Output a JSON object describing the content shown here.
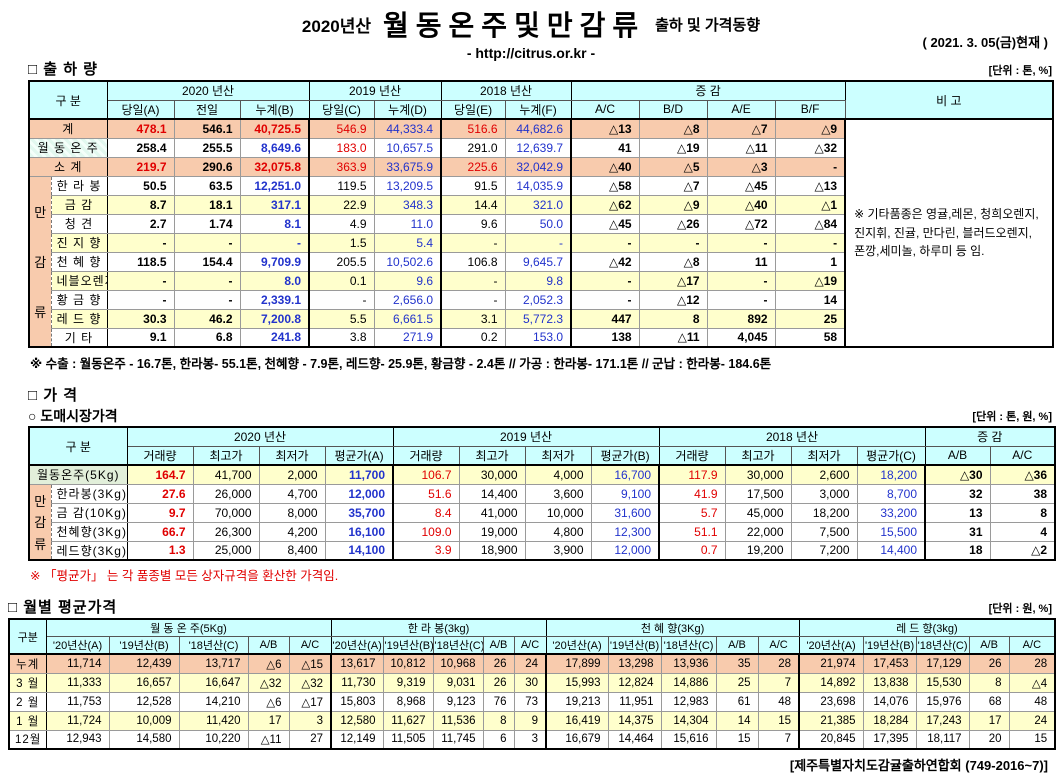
{
  "header": {
    "season": "2020년산",
    "title": "월동온주및만감류",
    "subtitle": "출하 및 가격동향",
    "url": "- http://citrus.or.kr -",
    "as_of": "( 2021. 3. 05(금)현재 )"
  },
  "colors": {
    "red": "#e00000",
    "blue": "#2233cc",
    "header_bg": "#ccffff",
    "orange_row": "#f8cbad",
    "yellow_row": "#ffffcc",
    "green_label": "#e2efda"
  },
  "shipment": {
    "section_title": "□ 출 하 량",
    "unit": "[단위 : 톤, %]",
    "header": {
      "gubun": "구      분",
      "y2020": "2020 년산",
      "y2019": "2019 년산",
      "y2018": "2018 년산",
      "diff": "증      감",
      "bigo": "비 고",
      "cols": [
        "당일(A)",
        "전일",
        "누계(B)",
        "당일(C)",
        "누계(D)",
        "당일(E)",
        "누계(F)",
        "A/C",
        "B/D",
        "A/E",
        "B/F"
      ]
    },
    "group_label": "만감류",
    "remark": "※ 기타품종은 영귤,레몬, 청희오렌지, 진지휘, 진귤, 만다린, 블러드오렌지, 폰깡,세미놀, 하루미 등 임.",
    "rows": [
      {
        "label": "계",
        "in_group": false,
        "bg": "orange",
        "values": [
          "478.1",
          "546.1",
          "40,725.5",
          "546.9",
          "44,333.4",
          "516.6",
          "44,682.6",
          "△13",
          "△8",
          "△7",
          "△9"
        ],
        "styles": [
          "rB",
          "kB",
          "rB",
          "r",
          "b",
          "r",
          "b",
          "kB",
          "kB",
          "kB",
          "kB"
        ]
      },
      {
        "label": "월 동 온 주",
        "in_group": false,
        "bg": "white",
        "label_style": "stripe",
        "values": [
          "258.4",
          "255.5",
          "8,649.6",
          "183.0",
          "10,657.5",
          "291.0",
          "12,639.7",
          "41",
          "△19",
          "△11",
          "△32"
        ],
        "styles": [
          "kB",
          "kB",
          "bB",
          "r",
          "b",
          "k",
          "b",
          "kB",
          "kB",
          "kB",
          "kB"
        ]
      },
      {
        "label": "소      계",
        "in_group": false,
        "bg": "orange",
        "values": [
          "219.7",
          "290.6",
          "32,075.8",
          "363.9",
          "33,675.9",
          "225.6",
          "32,042.9",
          "△40",
          "△5",
          "△3",
          "-"
        ],
        "styles": [
          "rB",
          "kB",
          "rB",
          "r",
          "b",
          "r",
          "b",
          "kB",
          "kB",
          "kB",
          "kB"
        ]
      },
      {
        "label": "한 라 봉",
        "in_group": true,
        "bg": "white",
        "values": [
          "50.5",
          "63.5",
          "12,251.0",
          "119.5",
          "13,209.5",
          "91.5",
          "14,035.9",
          "△58",
          "△7",
          "△45",
          "△13"
        ],
        "styles": [
          "kB",
          "kB",
          "bB",
          "k",
          "b",
          "k",
          "b",
          "kB",
          "kB",
          "kB",
          "kB"
        ]
      },
      {
        "label": "금      감",
        "in_group": true,
        "bg": "yellow",
        "values": [
          "8.7",
          "18.1",
          "317.1",
          "22.9",
          "348.3",
          "14.4",
          "321.0",
          "△62",
          "△9",
          "△40",
          "△1"
        ],
        "styles": [
          "kB",
          "kB",
          "bB",
          "k",
          "b",
          "k",
          "b",
          "kB",
          "kB",
          "kB",
          "kB"
        ]
      },
      {
        "label": "청      견",
        "in_group": true,
        "bg": "white",
        "values": [
          "2.7",
          "1.74",
          "8.1",
          "4.9",
          "11.0",
          "9.6",
          "50.0",
          "△45",
          "△26",
          "△72",
          "△84"
        ],
        "styles": [
          "kB",
          "kB",
          "bB",
          "k",
          "b",
          "k",
          "b",
          "kB",
          "kB",
          "kB",
          "kB"
        ]
      },
      {
        "label": "진 지 향",
        "in_group": true,
        "bg": "yellow",
        "values": [
          "-",
          "-",
          "-",
          "1.5",
          "5.4",
          "-",
          "-",
          "-",
          "-",
          "-",
          "-"
        ],
        "styles": [
          "kB",
          "kB",
          "bB",
          "k",
          "b",
          "k",
          "b",
          "kB",
          "kB",
          "kB",
          "kB"
        ]
      },
      {
        "label": "천 혜 향",
        "in_group": true,
        "bg": "white",
        "values": [
          "118.5",
          "154.4",
          "9,709.9",
          "205.5",
          "10,502.6",
          "106.8",
          "9,645.7",
          "△42",
          "△8",
          "11",
          "1"
        ],
        "styles": [
          "kB",
          "kB",
          "bB",
          "k",
          "b",
          "k",
          "b",
          "kB",
          "kB",
          "kB",
          "kB"
        ]
      },
      {
        "label": "네블오렌지",
        "in_group": true,
        "bg": "yellow",
        "values": [
          "-",
          "-",
          "8.0",
          "0.1",
          "9.6",
          "-",
          "9.8",
          "-",
          "△17",
          "-",
          "△19"
        ],
        "styles": [
          "kB",
          "kB",
          "bB",
          "k",
          "b",
          "k",
          "b",
          "kB",
          "kB",
          "kB",
          "kB"
        ]
      },
      {
        "label": "황 금 향",
        "in_group": true,
        "bg": "white",
        "values": [
          "-",
          "-",
          "2,339.1",
          "-",
          "2,656.0",
          "-",
          "2,052.3",
          "-",
          "△12",
          "-",
          "14"
        ],
        "styles": [
          "kB",
          "kB",
          "bB",
          "k",
          "b",
          "k",
          "b",
          "kB",
          "kB",
          "kB",
          "kB"
        ]
      },
      {
        "label": "레 드 향",
        "in_group": true,
        "bg": "yellow",
        "values": [
          "30.3",
          "46.2",
          "7,200.8",
          "5.5",
          "6,661.5",
          "3.1",
          "5,772.3",
          "447",
          "8",
          "892",
          "25"
        ],
        "styles": [
          "kB",
          "kB",
          "bB",
          "k",
          "b",
          "k",
          "b",
          "kB",
          "kB",
          "kB",
          "kB"
        ]
      },
      {
        "label": "기      타",
        "in_group": true,
        "bg": "white",
        "values": [
          "9.1",
          "6.8",
          "241.8",
          "3.8",
          "271.9",
          "0.2",
          "153.0",
          "138",
          "△11",
          "4,045",
          "58"
        ],
        "styles": [
          "kB",
          "kB",
          "bB",
          "k",
          "b",
          "k",
          "b",
          "kB",
          "kB",
          "kB",
          "kB"
        ]
      }
    ],
    "footnote": "※ 수출 : 월동온주 - 16.7톤, 한라봉- 55.1톤, 천혜향 - 7.9톤, 레드향- 25.9톤, 황금향 - 2.4톤  //  가공 : 한라봉- 171.1톤  //  군납 : 한라봉- 184.6톤"
  },
  "price": {
    "section_title": "□ 가      격",
    "sub_title": "○ 도매시장가격",
    "unit": "[단위 : 톤, 원, %]",
    "header": {
      "gubun": "구      분",
      "y2020": "2020 년산",
      "y2019": "2019 년산",
      "y2018": "2018 년산",
      "diff": "증  감",
      "cols2020": [
        "거래량",
        "최고가",
        "최저가",
        "평균가(A)"
      ],
      "cols2019": [
        "거래량",
        "최고가",
        "최저가",
        "평균가(B)"
      ],
      "cols2018": [
        "거래량",
        "최고가",
        "최저가",
        "평균가(C)"
      ],
      "diff_cols": [
        "A/B",
        "A/C"
      ]
    },
    "group_label": "만감류",
    "rows": [
      {
        "label": "월동온주(5Kg)",
        "in_group": false,
        "bg": "yellow",
        "label_style": "label-green",
        "values": [
          "164.7",
          "41,700",
          "2,000",
          "11,700",
          "106.7",
          "30,000",
          "4,000",
          "16,700",
          "117.9",
          "30,000",
          "2,600",
          "18,200",
          "△30",
          "△36"
        ],
        "styles": [
          "rB",
          "k",
          "k",
          "bB",
          "r",
          "k",
          "k",
          "b",
          "r",
          "k",
          "k",
          "b",
          "kB",
          "kB"
        ]
      },
      {
        "label": "한라봉(3Kg)",
        "in_group": true,
        "bg": "white",
        "values": [
          "27.6",
          "26,000",
          "4,700",
          "12,000",
          "51.6",
          "14,400",
          "3,600",
          "9,100",
          "41.9",
          "17,500",
          "3,000",
          "8,700",
          "32",
          "38"
        ],
        "styles": [
          "rB",
          "k",
          "k",
          "bB",
          "r",
          "k",
          "k",
          "b",
          "r",
          "k",
          "k",
          "b",
          "kB",
          "kB"
        ]
      },
      {
        "label": "금  감(10Kg)",
        "in_group": true,
        "bg": "white",
        "values": [
          "9.7",
          "70,000",
          "8,000",
          "35,700",
          "8.4",
          "41,000",
          "10,000",
          "31,600",
          "5.7",
          "45,000",
          "18,200",
          "33,200",
          "13",
          "8"
        ],
        "styles": [
          "rB",
          "k",
          "k",
          "bB",
          "r",
          "k",
          "k",
          "b",
          "r",
          "k",
          "k",
          "b",
          "kB",
          "kB"
        ]
      },
      {
        "label": "천혜향(3Kg)",
        "in_group": true,
        "bg": "white",
        "values": [
          "66.7",
          "26,300",
          "4,200",
          "16,100",
          "109.0",
          "19,000",
          "4,800",
          "12,300",
          "51.1",
          "22,000",
          "7,500",
          "15,500",
          "31",
          "4"
        ],
        "styles": [
          "rB",
          "k",
          "k",
          "bB",
          "r",
          "k",
          "k",
          "b",
          "r",
          "k",
          "k",
          "b",
          "kB",
          "kB"
        ]
      },
      {
        "label": "레드향(3Kg)",
        "in_group": true,
        "bg": "white",
        "values": [
          "1.3",
          "25,000",
          "8,400",
          "14,100",
          "3.9",
          "18,900",
          "3,900",
          "12,000",
          "0.7",
          "19,200",
          "7,200",
          "14,400",
          "18",
          "△2"
        ],
        "styles": [
          "rB",
          "k",
          "k",
          "bB",
          "r",
          "k",
          "k",
          "b",
          "r",
          "k",
          "k",
          "b",
          "kB",
          "kB"
        ]
      }
    ],
    "note": "※  「평균가」 는 각 품종별 모든 상자규격을 환산한 가격임."
  },
  "monthly": {
    "section_title": "□ 월별 평균가격",
    "unit": "[단위 : 원, %]",
    "gubun": "구분",
    "groups": [
      {
        "label": "월 동 온 주(5Kg)",
        "cols": [
          "'20년산(A)",
          "'19년산(B)",
          "'18년산(C)",
          "A/B",
          "A/C"
        ]
      },
      {
        "label": "한 라 봉(3kg)",
        "cols": [
          "'20년산(A)",
          "'19년산(B)",
          "'18년산(C)",
          "A/B",
          "A/C"
        ]
      },
      {
        "label": "천 혜 향(3Kg)",
        "cols": [
          "'20년산(A)",
          "'19년산(B)",
          "'18년산(C)",
          "A/B",
          "A/C"
        ]
      },
      {
        "label": "레 드 향(3kg)",
        "cols": [
          "'20년산(A)",
          "'19년산(B)",
          "'18년산(C)",
          "A/B",
          "A/C"
        ]
      }
    ],
    "rows": [
      {
        "label": "누계",
        "bg": "orange",
        "values": [
          "11,714",
          "12,439",
          "13,717",
          "△6",
          "△15",
          "13,617",
          "10,812",
          "10,968",
          "26",
          "24",
          "17,899",
          "13,298",
          "13,936",
          "35",
          "28",
          "21,974",
          "17,453",
          "17,129",
          "26",
          "28"
        ]
      },
      {
        "label": "3 월",
        "bg": "yellow",
        "values": [
          "11,333",
          "16,657",
          "16,647",
          "△32",
          "△32",
          "11,730",
          "9,319",
          "9,031",
          "26",
          "30",
          "15,993",
          "12,824",
          "14,886",
          "25",
          "7",
          "14,892",
          "13,838",
          "15,530",
          "8",
          "△4"
        ]
      },
      {
        "label": "2 월",
        "bg": "white",
        "values": [
          "11,753",
          "12,528",
          "14,210",
          "△6",
          "△17",
          "15,803",
          "8,968",
          "9,123",
          "76",
          "73",
          "19,213",
          "11,951",
          "12,983",
          "61",
          "48",
          "23,698",
          "14,076",
          "15,976",
          "68",
          "48"
        ]
      },
      {
        "label": "1 월",
        "bg": "yellow",
        "values": [
          "11,724",
          "10,009",
          "11,420",
          "17",
          "3",
          "12,580",
          "11,627",
          "11,536",
          "8",
          "9",
          "16,419",
          "14,375",
          "14,304",
          "14",
          "15",
          "21,385",
          "18,284",
          "17,243",
          "17",
          "24"
        ]
      },
      {
        "label": "12월",
        "bg": "white",
        "values": [
          "12,943",
          "14,580",
          "10,220",
          "△11",
          "27",
          "12,149",
          "11,505",
          "11,745",
          "6",
          "3",
          "16,679",
          "14,464",
          "15,616",
          "15",
          "7",
          "20,845",
          "17,395",
          "18,117",
          "20",
          "15"
        ]
      }
    ]
  },
  "footer": "[제주특별자치도감귤출하연합회 (749-2016~7)]"
}
